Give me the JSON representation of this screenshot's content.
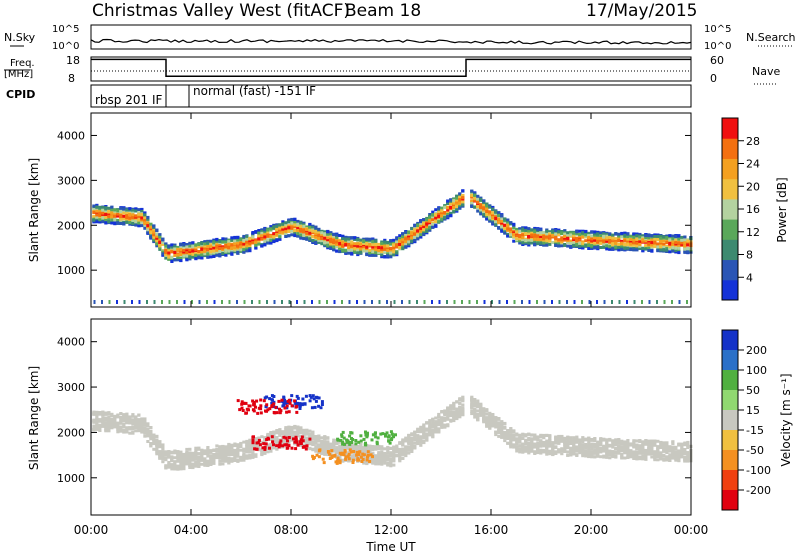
{
  "header": {
    "station": "Christmas Valley West (fitACF)",
    "beam": "Beam 18",
    "date": "17/May/2015"
  },
  "strips": {
    "nsky_label": "N.Sky",
    "nsearch_label": "N.Search",
    "freq_label_1": "Freq.",
    "freq_label_2": "[MHz]",
    "nave_label": "Nave",
    "cpid_label": "CPID",
    "exp_upper": "10^5",
    "exp_lower": "10^0",
    "freq_top": "18",
    "freq_bot": "8",
    "nave_top": "60",
    "nave_bot": "0"
  },
  "cpid": [
    {
      "label": "rbsp 201 IF",
      "start": 0,
      "end": 3
    },
    {
      "label": "normal (fast) -151 IF",
      "start": 3,
      "end": 24
    }
  ],
  "power_panel": {
    "ylabel": "Slant Range [km]",
    "yticks": [
      "1000",
      "2000",
      "3000",
      "4000"
    ],
    "colorbar_title": "Power [dB]",
    "colorbar_ticks": [
      "4",
      "8",
      "12",
      "16",
      "20",
      "24",
      "28"
    ],
    "colors": [
      "#1432d8",
      "#2a55b5",
      "#3d8a70",
      "#5aa85a",
      "#b4d2a0",
      "#f0c040",
      "#f4a020",
      "#f47010",
      "#f01010"
    ]
  },
  "velocity_panel": {
    "ylabel": "Slant Range [km]",
    "yticks": [
      "1000",
      "2000",
      "3000",
      "4000"
    ],
    "colorbar_title": "Velocity [m s⁻¹]",
    "colorbar_ticks": [
      "200",
      "100",
      "50",
      "15",
      "-15",
      "-50",
      "-100",
      "-200"
    ],
    "colors": [
      "#1432c8",
      "#2a70c8",
      "#50b040",
      "#90d870",
      "#c8c8c0",
      "#f0c040",
      "#f49020",
      "#f04010",
      "#e00010"
    ]
  },
  "xaxis": {
    "label": "Time UT",
    "ticks": [
      "00:00",
      "04:00",
      "08:00",
      "12:00",
      "16:00",
      "20:00",
      "00:00"
    ]
  },
  "chart_data": {
    "type": "heatmap",
    "title": "Christmas Valley West (fitACF) Beam 18 17/May/2015",
    "xlabel": "Time UT",
    "ylabel": "Slant Range [km]",
    "xlim": [
      0,
      24
    ],
    "ylim": [
      180,
      4500
    ],
    "operating_frequency_mhz": [
      {
        "start": 0,
        "end": 3,
        "value": 17
      },
      {
        "start": 3,
        "end": 15,
        "value": 10
      },
      {
        "start": 15,
        "end": 24,
        "value": 17
      }
    ],
    "power_bands_db": [
      {
        "t": 0,
        "range_km": 2300,
        "power": 24
      },
      {
        "t": 2,
        "range_km": 2200,
        "power": 24
      },
      {
        "t": 3,
        "range_km": 1400,
        "power": 28
      },
      {
        "t": 6,
        "range_km": 1600,
        "power": 28
      },
      {
        "t": 8,
        "range_km": 2000,
        "power": 20
      },
      {
        "t": 10,
        "range_km": 1600,
        "power": 28
      },
      {
        "t": 12,
        "range_km": 1500,
        "power": 20
      },
      {
        "t": 15,
        "range_km": 2700,
        "power": 16
      },
      {
        "t": 17,
        "range_km": 1800,
        "power": 24
      },
      {
        "t": 20,
        "range_km": 1700,
        "power": 28
      },
      {
        "t": 24,
        "range_km": 1600,
        "power": 28
      }
    ],
    "velocity_features_ms": [
      {
        "t": 8,
        "range_km": 2700,
        "velocity": 200
      },
      {
        "t": 7,
        "range_km": 2600,
        "velocity": -200
      },
      {
        "t": 7.5,
        "range_km": 1800,
        "velocity": -200
      },
      {
        "t": 11,
        "range_km": 1900,
        "velocity": 50
      },
      {
        "t": 10,
        "range_km": 1500,
        "velocity": -50
      }
    ]
  }
}
